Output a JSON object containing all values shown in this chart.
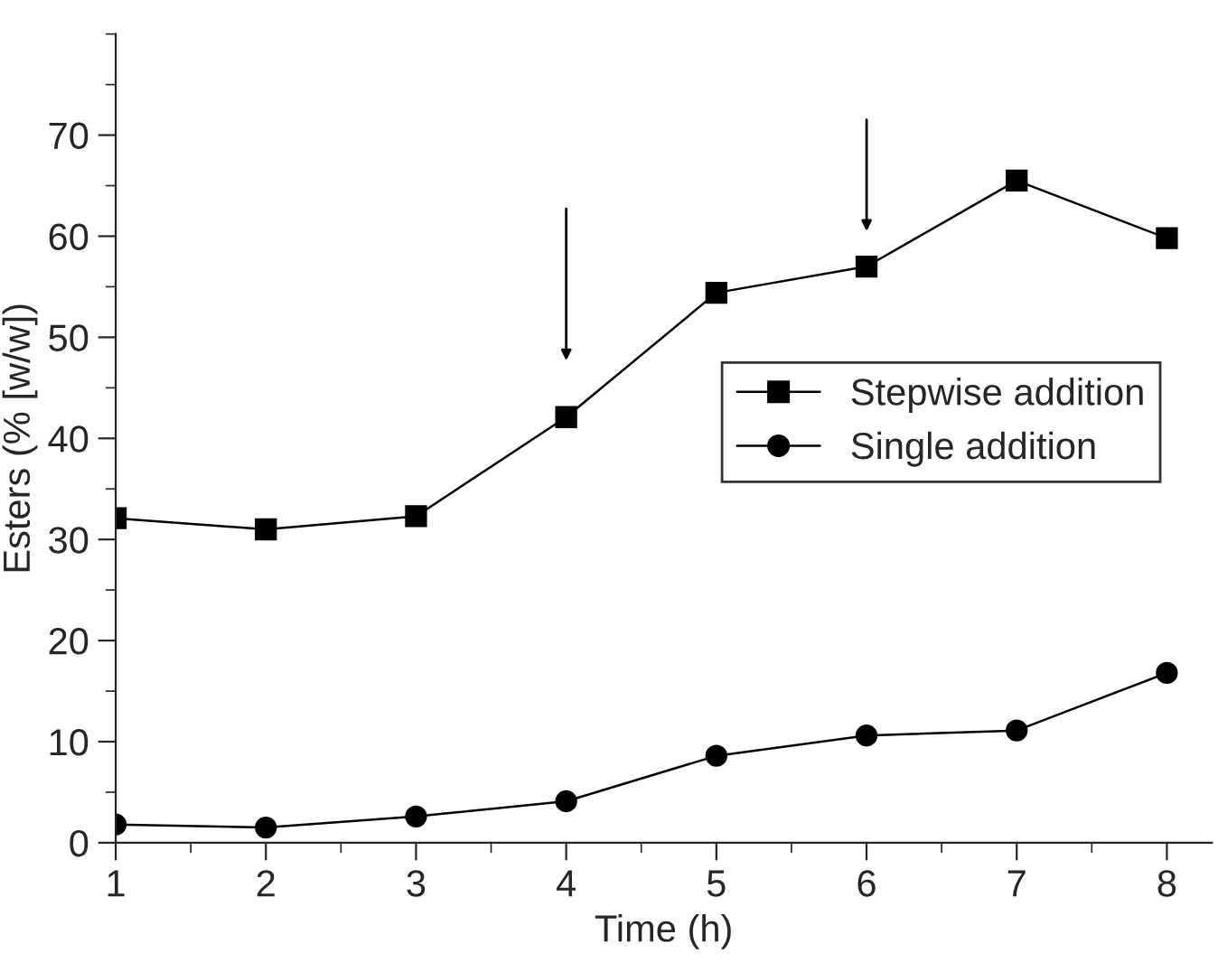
{
  "chart_data": {
    "type": "line",
    "xlabel": "Time (h)",
    "ylabel": "Esters (% [w/w])",
    "x": [
      1,
      2,
      3,
      4,
      5,
      6,
      7,
      8
    ],
    "series": [
      {
        "name": "Stepwise addition",
        "color": "#000000",
        "marker": "square",
        "values": [
          32.1,
          31.0,
          32.3,
          42.1,
          54.4,
          57.0,
          65.5,
          59.8
        ]
      },
      {
        "name": "Single addition",
        "color": "#000000",
        "marker": "circle",
        "values": [
          1.8,
          1.5,
          2.6,
          4.1,
          8.6,
          10.6,
          11.1,
          16.8
        ]
      }
    ],
    "xlim": [
      1,
      8.3
    ],
    "ylim": [
      0,
      80
    ],
    "xticks": [
      1,
      2,
      3,
      4,
      5,
      6,
      7,
      8
    ],
    "yticks": [
      0,
      10,
      20,
      30,
      40,
      50,
      60,
      70
    ],
    "grid": false,
    "legend": "right",
    "line_style": "solid"
  }
}
